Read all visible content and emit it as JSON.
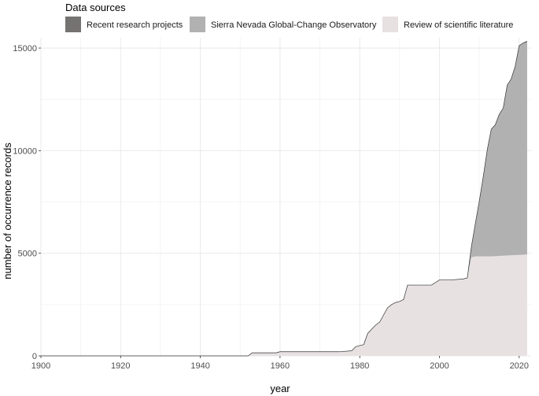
{
  "chart_data": {
    "type": "area",
    "stacked": true,
    "legend": {
      "title": "Data sources",
      "placement": "top"
    },
    "xlabel": "year",
    "ylabel": "number of occurrence records",
    "xlim": [
      1900,
      2023
    ],
    "ylim": [
      0,
      15500
    ],
    "x_ticks": [
      1900,
      1920,
      1940,
      1960,
      1980,
      2000,
      2020
    ],
    "x_tick_labels": [
      "1900",
      "1920",
      "1940",
      "1960",
      "1980",
      "2000",
      "2020"
    ],
    "y_ticks": [
      0,
      5000,
      10000,
      15000
    ],
    "y_tick_labels": [
      "0",
      "5000",
      "10000",
      "15000"
    ],
    "grid": true,
    "x": [
      1900,
      1952,
      1953,
      1959,
      1960,
      1975,
      1978,
      1979,
      1980,
      1981,
      1982,
      1983,
      1984,
      1985,
      1986,
      1987,
      1988,
      1989,
      1990,
      1991,
      1992,
      1995,
      1998,
      2000,
      2003,
      2006,
      2007,
      2008,
      2009,
      2010,
      2011,
      2012,
      2013,
      2014,
      2015,
      2016,
      2017,
      2018,
      2019,
      2020,
      2021,
      2022
    ],
    "series": [
      {
        "name": "Review of scientific literature",
        "color": "#e7e1e2",
        "values": [
          0,
          0,
          150,
          150,
          200,
          200,
          250,
          450,
          500,
          550,
          1100,
          1300,
          1500,
          1650,
          2000,
          2350,
          2500,
          2600,
          2650,
          2750,
          3450,
          3450,
          3450,
          3700,
          3700,
          3750,
          3800,
          4800,
          4850,
          4850,
          4850,
          4850,
          4850,
          4860,
          4870,
          4880,
          4890,
          4900,
          4910,
          4920,
          4930,
          4940
        ]
      },
      {
        "name": "Sierra Nevada Global-Change Observatory",
        "color": "#b1b1b1",
        "values": [
          0,
          0,
          0,
          0,
          0,
          0,
          0,
          0,
          0,
          0,
          0,
          0,
          0,
          0,
          0,
          0,
          0,
          0,
          0,
          0,
          0,
          0,
          0,
          0,
          0,
          0,
          0,
          500,
          1600,
          2700,
          3900,
          5200,
          6200,
          6400,
          6900,
          7200,
          8300,
          8600,
          9200,
          10200,
          10300,
          10350
        ]
      },
      {
        "name": "Recent research projects",
        "color": "#757272",
        "values": [
          0,
          0,
          0,
          0,
          0,
          0,
          0,
          0,
          0,
          0,
          0,
          0,
          0,
          0,
          0,
          0,
          0,
          0,
          0,
          0,
          0,
          0,
          0,
          0,
          0,
          0,
          0,
          0,
          0,
          0,
          0,
          0,
          0,
          0,
          0,
          0,
          0,
          0,
          0,
          0,
          20,
          40
        ]
      }
    ]
  }
}
